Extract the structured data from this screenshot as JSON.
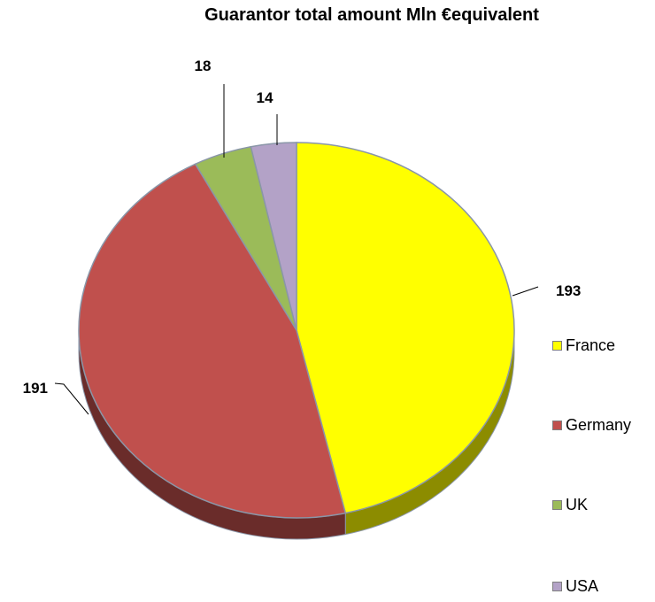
{
  "chart_data": {
    "type": "pie",
    "title": "Guarantor total amount Mln €equivalent",
    "categories": [
      "France",
      "Germany",
      "UK",
      "USA"
    ],
    "values": [
      193,
      191,
      18,
      14
    ],
    "colors": [
      "#ffff00",
      "#c0504d",
      "#9bbb59",
      "#b3a2c7"
    ],
    "legend": "right",
    "data_labels": [
      "193",
      "191",
      "18",
      "14"
    ]
  }
}
